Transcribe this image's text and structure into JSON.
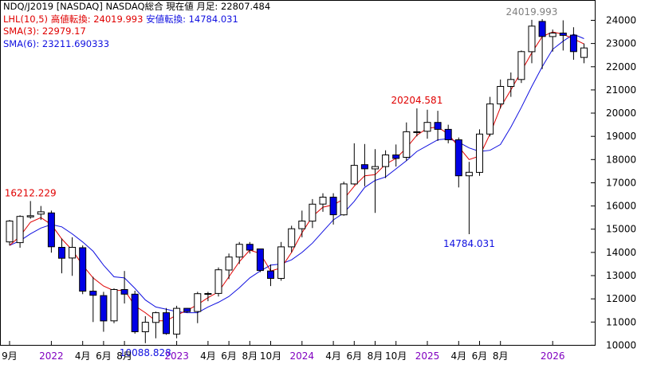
{
  "header": {
    "title": "NDQ/J2019 [NASDAQ] NASDAQ総合  現在値 月足: 22807.484",
    "lhl_label": "LHL(10,5)",
    "lhl_high_label": "高値転換: 24019.993",
    "lhl_low_label": "安値転換: 14784.031",
    "sma3_label": "SMA(3): 22979.17",
    "sma6_label": "SMA(6): 23211.690333"
  },
  "colors": {
    "up_candle_fill": "#ffffff",
    "down_candle_fill": "#0000e6",
    "candle_outline": "#000000",
    "sma3": "#e00000",
    "sma6": "#1010e0",
    "title_text": "#000000",
    "lhl_text": "#e00000",
    "lhl_low_text": "#1010e0",
    "year_label": "#8000c0",
    "peak_label_grey": "#808080"
  },
  "chart_data": {
    "type": "candlestick",
    "interval": "monthly",
    "y_axis": {
      "side": "right",
      "ylim": [
        9500,
        24600
      ],
      "ticks": [
        10000,
        11000,
        12000,
        13000,
        14000,
        15000,
        16000,
        17000,
        18000,
        19000,
        20000,
        21000,
        22000,
        23000,
        24000
      ]
    },
    "x_axis_labels": [
      {
        "index": 0,
        "text": "9月",
        "year": false
      },
      {
        "index": 4,
        "text": "2022",
        "year": true
      },
      {
        "index": 7,
        "text": "4月",
        "year": false
      },
      {
        "index": 9,
        "text": "6月",
        "year": false
      },
      {
        "index": 11,
        "text": "8月",
        "year": false
      },
      {
        "index": 16,
        "text": "2023",
        "year": true
      },
      {
        "index": 19,
        "text": "4月",
        "year": false
      },
      {
        "index": 21,
        "text": "6月",
        "year": false
      },
      {
        "index": 23,
        "text": "8月",
        "year": false
      },
      {
        "index": 25,
        "text": "10月",
        "year": false
      },
      {
        "index": 28,
        "text": "2024",
        "year": true
      },
      {
        "index": 31,
        "text": "4月",
        "year": false
      },
      {
        "index": 33,
        "text": "6月",
        "year": false
      },
      {
        "index": 35,
        "text": "8月",
        "year": false
      },
      {
        "index": 37,
        "text": "10月",
        "year": false
      },
      {
        "index": 40,
        "text": "2025",
        "year": true
      },
      {
        "index": 43,
        "text": "4月",
        "year": false
      },
      {
        "index": 45,
        "text": "6月",
        "year": false
      },
      {
        "index": 47,
        "text": "8月",
        "year": false
      },
      {
        "index": 52,
        "text": "2026",
        "year": true
      }
    ],
    "candles": [
      {
        "o": 14450,
        "h": 15400,
        "l": 14300,
        "c": 15350
      },
      {
        "o": 14420,
        "h": 15600,
        "l": 14200,
        "c": 15550
      },
      {
        "o": 15530,
        "h": 16212.229,
        "l": 15450,
        "c": 15580
      },
      {
        "o": 15650,
        "h": 16000,
        "l": 15400,
        "c": 15750
      },
      {
        "o": 15700,
        "h": 15800,
        "l": 13990,
        "c": 14240
      },
      {
        "o": 14220,
        "h": 14600,
        "l": 13100,
        "c": 13750
      },
      {
        "o": 13760,
        "h": 14650,
        "l": 12990,
        "c": 14220
      },
      {
        "o": 14200,
        "h": 14300,
        "l": 12200,
        "c": 12330
      },
      {
        "o": 12330,
        "h": 12950,
        "l": 11000,
        "c": 12150
      },
      {
        "o": 12140,
        "h": 12300,
        "l": 10580,
        "c": 11050
      },
      {
        "o": 11050,
        "h": 12450,
        "l": 10950,
        "c": 12400
      },
      {
        "o": 12400,
        "h": 13200,
        "l": 11800,
        "c": 12200
      },
      {
        "o": 12200,
        "h": 12350,
        "l": 10500,
        "c": 10580
      },
      {
        "o": 10580,
        "h": 11250,
        "l": 10088.828,
        "c": 10990
      },
      {
        "o": 10980,
        "h": 11450,
        "l": 10300,
        "c": 11400
      },
      {
        "o": 11400,
        "h": 11600,
        "l": 10450,
        "c": 10500
      },
      {
        "o": 10480,
        "h": 11700,
        "l": 10300,
        "c": 11590
      },
      {
        "o": 11590,
        "h": 11600,
        "l": 11400,
        "c": 11450
      },
      {
        "o": 11450,
        "h": 12300,
        "l": 10950,
        "c": 12220
      },
      {
        "o": 12220,
        "h": 12300,
        "l": 11900,
        "c": 12230
      },
      {
        "o": 12230,
        "h": 13350,
        "l": 12100,
        "c": 13250
      },
      {
        "o": 13240,
        "h": 13950,
        "l": 12850,
        "c": 13800
      },
      {
        "o": 13800,
        "h": 14450,
        "l": 13500,
        "c": 14350
      },
      {
        "o": 14350,
        "h": 14450,
        "l": 13950,
        "c": 14100
      },
      {
        "o": 14150,
        "h": 14150,
        "l": 13150,
        "c": 13220
      },
      {
        "o": 13200,
        "h": 13480,
        "l": 12550,
        "c": 12880
      },
      {
        "o": 12880,
        "h": 14450,
        "l": 12780,
        "c": 14240
      },
      {
        "o": 14240,
        "h": 15150,
        "l": 14000,
        "c": 15020
      },
      {
        "o": 15020,
        "h": 15800,
        "l": 14650,
        "c": 15350
      },
      {
        "o": 15350,
        "h": 16300,
        "l": 15050,
        "c": 16080
      },
      {
        "o": 16080,
        "h": 16550,
        "l": 15750,
        "c": 16380
      },
      {
        "o": 16380,
        "h": 16550,
        "l": 15200,
        "c": 15620
      },
      {
        "o": 15620,
        "h": 17050,
        "l": 15580,
        "c": 16950
      },
      {
        "o": 16950,
        "h": 18700,
        "l": 16900,
        "c": 17750
      },
      {
        "o": 17780,
        "h": 18670,
        "l": 16850,
        "c": 17600
      },
      {
        "o": 17600,
        "h": 18450,
        "l": 15700,
        "c": 17700
      },
      {
        "o": 17700,
        "h": 18400,
        "l": 17200,
        "c": 18200
      },
      {
        "o": 18200,
        "h": 18650,
        "l": 17700,
        "c": 18050
      },
      {
        "o": 18100,
        "h": 19600,
        "l": 17950,
        "c": 19200
      },
      {
        "o": 19200,
        "h": 20204.581,
        "l": 19000,
        "c": 19200
      },
      {
        "o": 19220,
        "h": 20150,
        "l": 18900,
        "c": 19600
      },
      {
        "o": 19600,
        "h": 20100,
        "l": 18800,
        "c": 19300
      },
      {
        "o": 19300,
        "h": 19500,
        "l": 18700,
        "c": 18850
      },
      {
        "o": 18850,
        "h": 18950,
        "l": 16800,
        "c": 17300
      },
      {
        "o": 17300,
        "h": 17900,
        "l": 14784.031,
        "c": 17450
      },
      {
        "o": 17450,
        "h": 19300,
        "l": 17300,
        "c": 19100
      },
      {
        "o": 19100,
        "h": 20700,
        "l": 19000,
        "c": 20400
      },
      {
        "o": 20400,
        "h": 21450,
        "l": 20200,
        "c": 21150
      },
      {
        "o": 21150,
        "h": 21750,
        "l": 20700,
        "c": 21450
      },
      {
        "o": 21450,
        "h": 22700,
        "l": 21300,
        "c": 22650
      },
      {
        "o": 22650,
        "h": 24019.993,
        "l": 22150,
        "c": 23750
      },
      {
        "o": 23950,
        "h": 24050,
        "l": 21900,
        "c": 23300
      },
      {
        "o": 23300,
        "h": 23600,
        "l": 22650,
        "c": 23450
      },
      {
        "o": 23450,
        "h": 24000,
        "l": 22700,
        "c": 23350
      },
      {
        "o": 23360,
        "h": 23700,
        "l": 22300,
        "c": 22650
      },
      {
        "o": 22400,
        "h": 23000,
        "l": 22150,
        "c": 22807.484
      }
    ],
    "series": [
      {
        "name": "SMA(3)",
        "values": [
          14300,
          14700,
          15300,
          15500,
          15200,
          14580,
          14100,
          13450,
          12900,
          12550,
          12350,
          12380,
          11700,
          11400,
          11050,
          11050,
          11300,
          11500,
          11750,
          12050,
          12300,
          12950,
          13600,
          14100,
          13950,
          13200,
          13330,
          14000,
          14850,
          15550,
          15950,
          16050,
          16300,
          16850,
          17300,
          17350,
          17800,
          18050,
          18500,
          19050,
          19350,
          19400,
          19100,
          18550,
          18000,
          18150,
          19100,
          20250,
          21000,
          21800,
          22600,
          23300,
          23500,
          23400,
          23200,
          22979.17
        ]
      },
      {
        "name": "SMA(6)",
        "values": [
          14300,
          14500,
          14800,
          15050,
          15200,
          15100,
          14800,
          14450,
          14050,
          13450,
          12950,
          12900,
          12450,
          11950,
          11650,
          11550,
          11450,
          11400,
          11400,
          11650,
          11850,
          12100,
          12480,
          12900,
          13200,
          13450,
          13500,
          13680,
          14000,
          14400,
          14900,
          15400,
          15700,
          16200,
          16800,
          17100,
          17250,
          17600,
          17950,
          18350,
          18600,
          18850,
          18900,
          18750,
          18500,
          18350,
          18400,
          18650,
          19400,
          20250,
          21150,
          22000,
          22750,
          23100,
          23400,
          23211.690333
        ]
      }
    ],
    "annotations": [
      {
        "text": "16212.229",
        "index": 2,
        "anchor": "high",
        "color": "#e00000"
      },
      {
        "text": "10088.828",
        "index": 13,
        "anchor": "low",
        "color": "#1010e0"
      },
      {
        "text": "20204.581",
        "index": 39,
        "anchor": "high",
        "color": "#e00000"
      },
      {
        "text": "14784.031",
        "index": 44,
        "anchor": "low",
        "color": "#1010e0"
      },
      {
        "text": "24019.993",
        "index": 50,
        "anchor": "high",
        "color": "#808080"
      }
    ],
    "grid": false,
    "legend": "top-left"
  }
}
